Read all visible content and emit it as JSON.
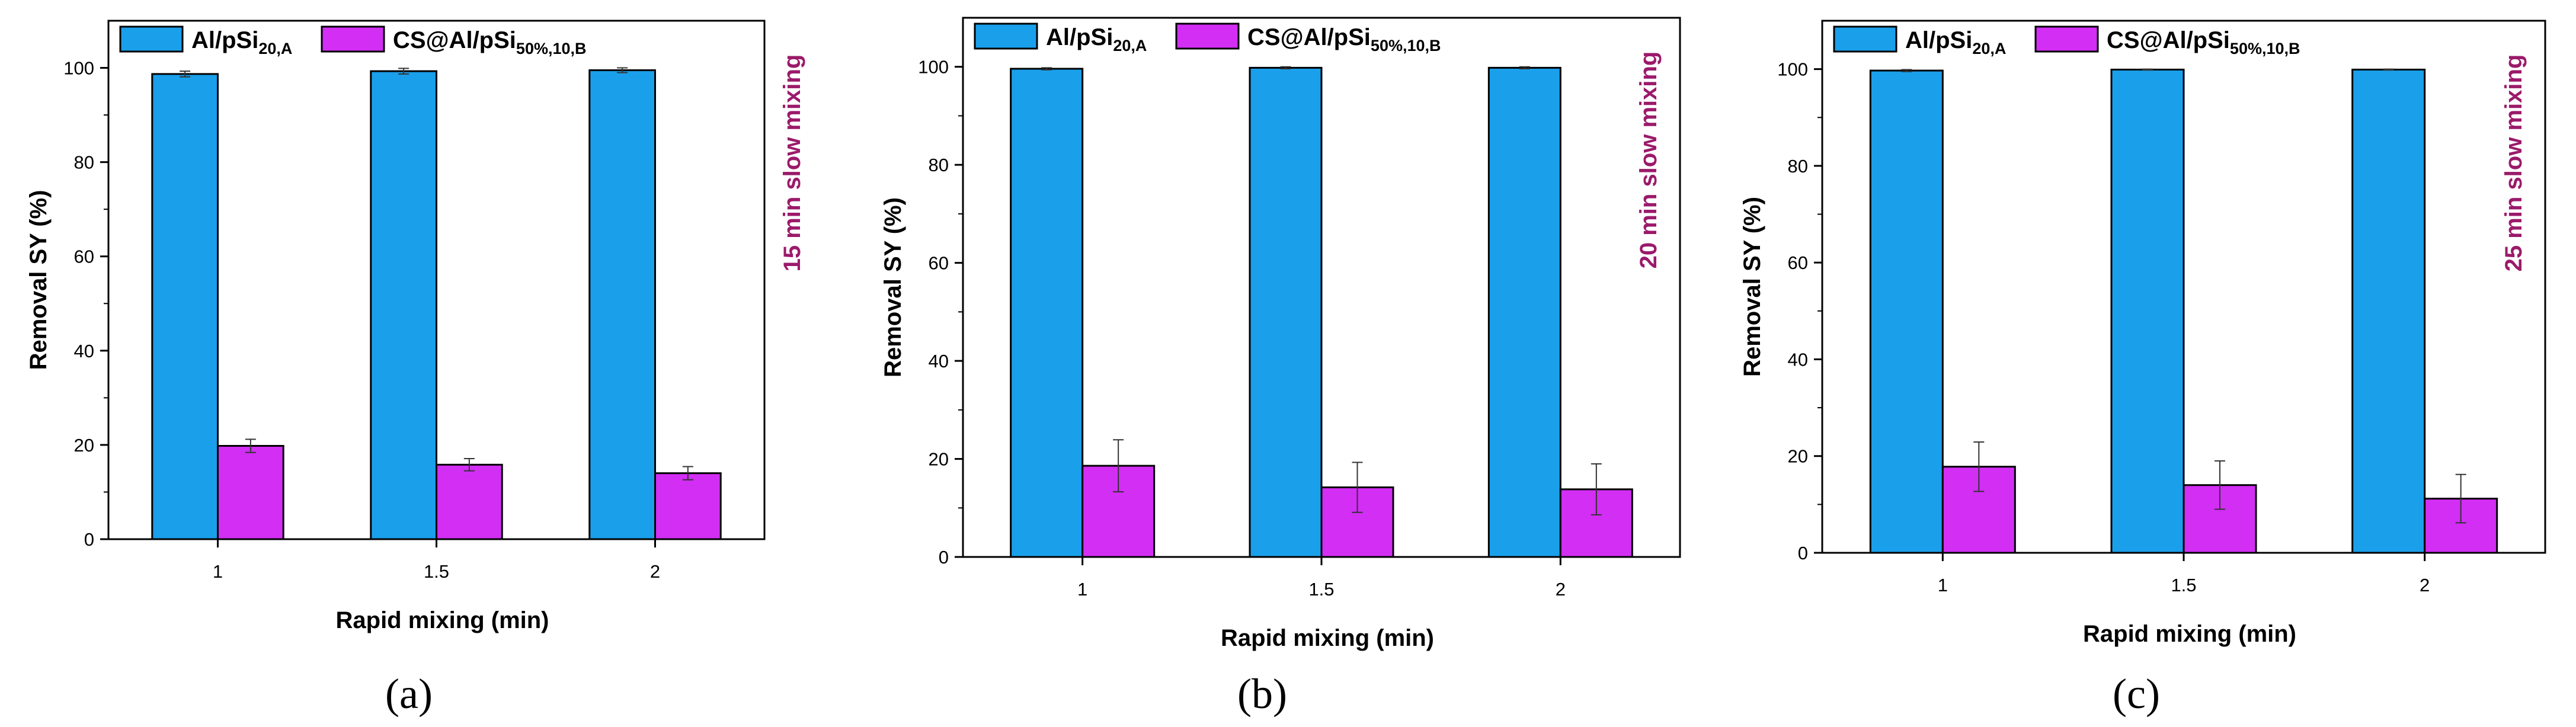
{
  "colors": {
    "series_a": "#1a9fea",
    "series_b": "#d22ef4",
    "annotation": "#9b1a6a"
  },
  "chart_data": [
    {
      "type": "bar",
      "panel_label": "(a)",
      "annotation": "15 min slow mixing",
      "xlabel": "Rapid mixing (min)",
      "ylabel": "Removal SY (%)",
      "ylim": [
        0,
        110
      ],
      "yticks": [
        0,
        20,
        40,
        60,
        80,
        100
      ],
      "categories": [
        "1",
        "1.5",
        "2"
      ],
      "legend_position": "top-left",
      "series": [
        {
          "name": "Al/pSi",
          "subscript": "20,A",
          "values": [
            98.7,
            99.3,
            99.5
          ],
          "errors": [
            0.6,
            0.6,
            0.5
          ]
        },
        {
          "name": "CS@Al/pSi",
          "subscript": "50%,10,B",
          "values": [
            19.8,
            15.8,
            14.0
          ],
          "errors": [
            1.4,
            1.3,
            1.4
          ]
        }
      ]
    },
    {
      "type": "bar",
      "panel_label": "(b)",
      "annotation": "20 min slow mixing",
      "xlabel": "Rapid mixing (min)",
      "ylabel": "Removal SY (%)",
      "ylim": [
        0,
        110
      ],
      "yticks": [
        0,
        20,
        40,
        60,
        80,
        100
      ],
      "categories": [
        "1",
        "1.5",
        "2"
      ],
      "legend_position": "top-left",
      "series": [
        {
          "name": "Al/pSi",
          "subscript": "20,A",
          "values": [
            99.6,
            99.8,
            99.8
          ],
          "errors": [
            0.2,
            0.2,
            0.2
          ]
        },
        {
          "name": "CS@Al/pSi",
          "subscript": "50%,10,B",
          "values": [
            18.6,
            14.2,
            13.8
          ],
          "errors": [
            5.3,
            5.1,
            5.2
          ]
        }
      ]
    },
    {
      "type": "bar",
      "panel_label": "(c)",
      "annotation": "25 min slow mixing",
      "xlabel": "Rapid mixing (min)",
      "ylabel": "Removal SY (%)",
      "ylim": [
        0,
        110
      ],
      "yticks": [
        0,
        20,
        40,
        60,
        80,
        100
      ],
      "categories": [
        "1",
        "1.5",
        "2"
      ],
      "legend_position": "top-left",
      "series": [
        {
          "name": "Al/pSi",
          "subscript": "20,A",
          "values": [
            99.7,
            99.9,
            99.9
          ],
          "errors": [
            0.2,
            0.1,
            0.1
          ]
        },
        {
          "name": "CS@Al/pSi",
          "subscript": "50%,10,B",
          "values": [
            17.8,
            14.0,
            11.2
          ],
          "errors": [
            5.1,
            5.0,
            5.0
          ]
        }
      ]
    }
  ]
}
